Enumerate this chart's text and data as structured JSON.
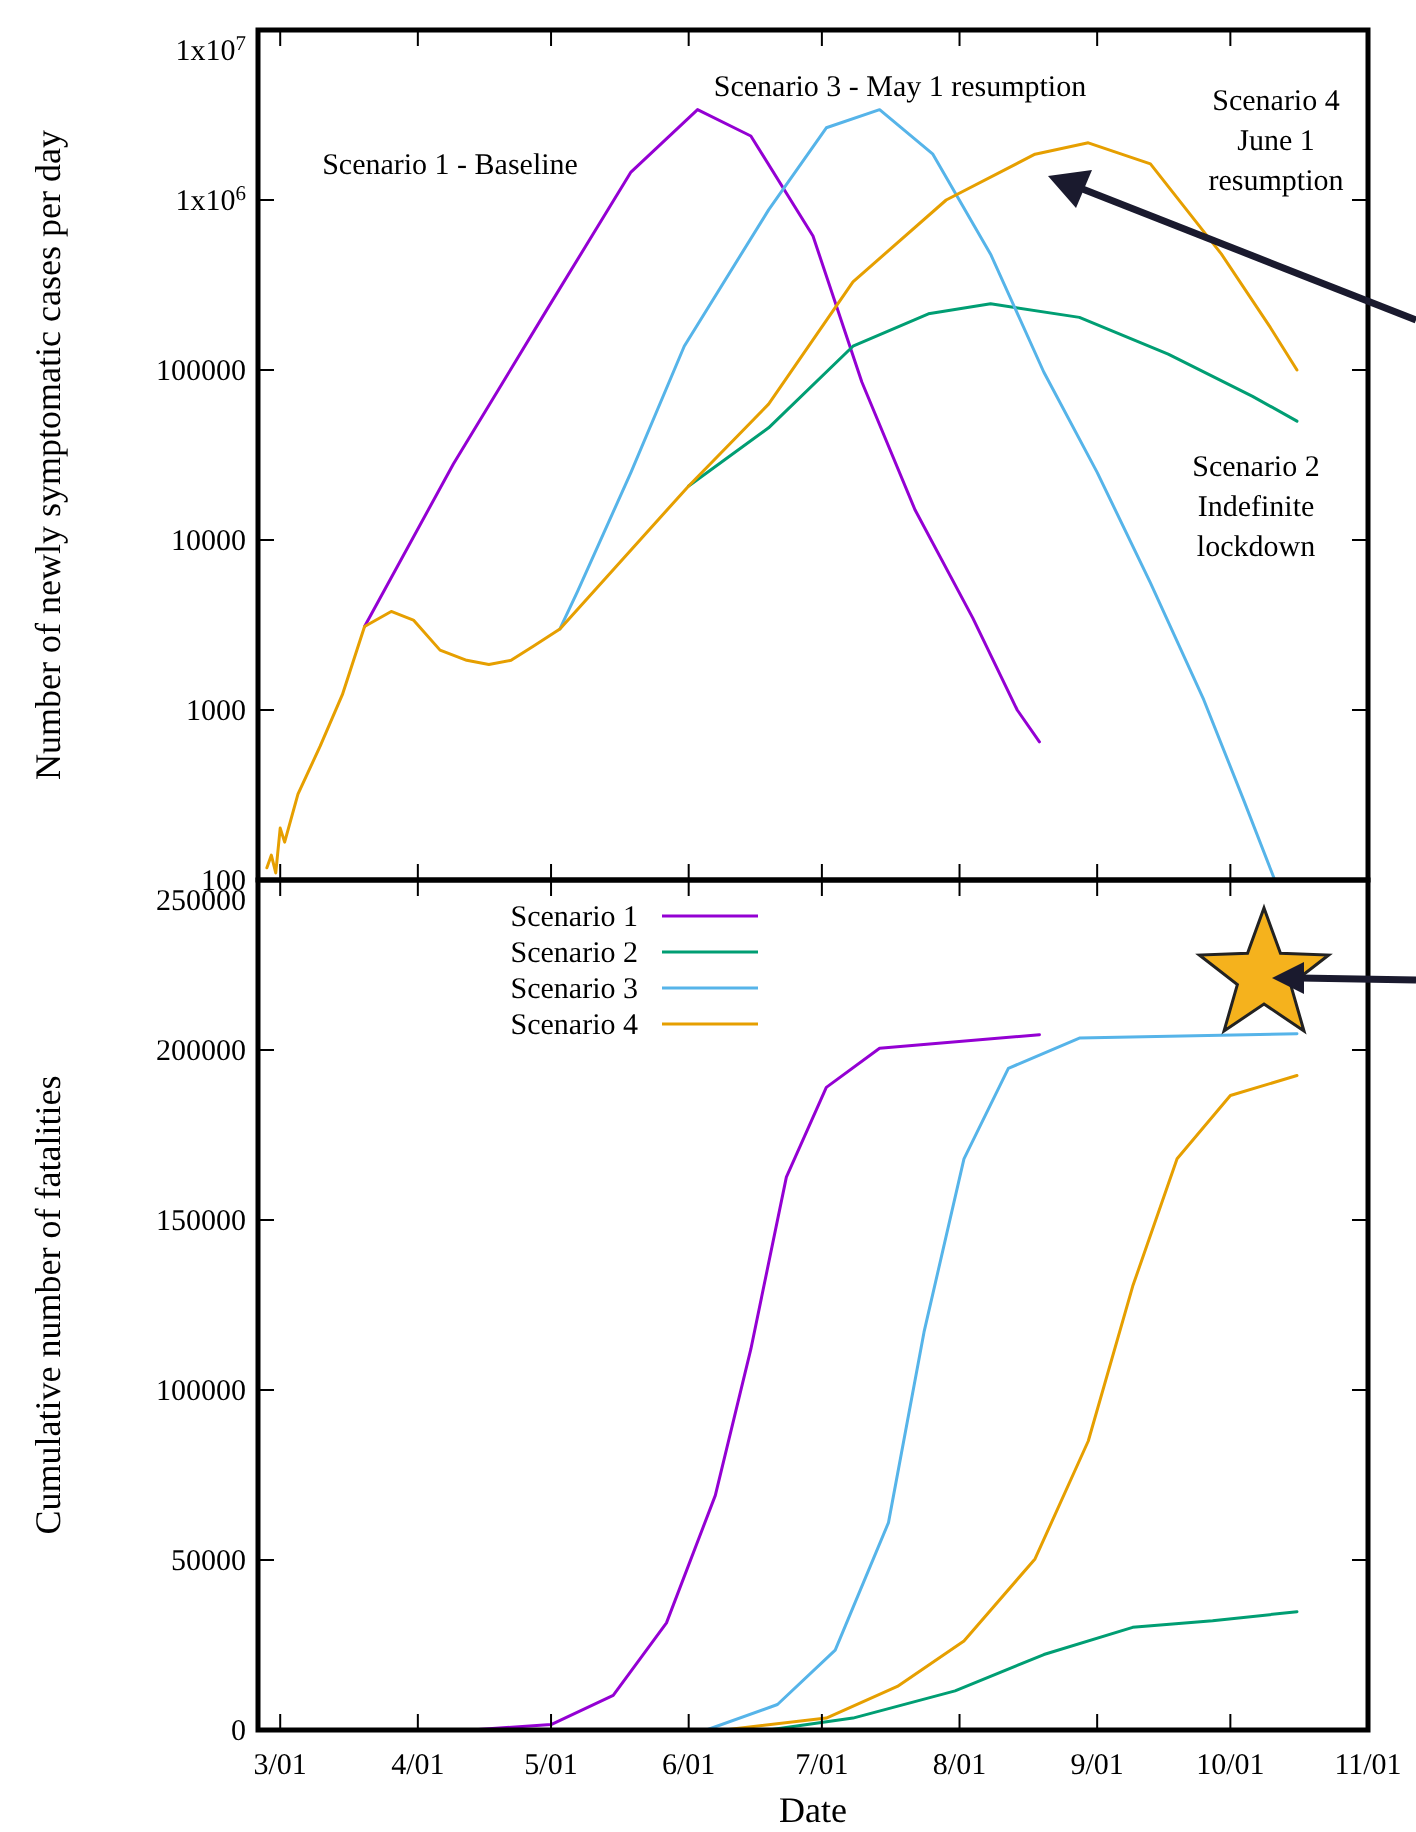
{
  "chart_data": [
    {
      "type": "line",
      "ylabel": "Number of newly symptomatic cases per day",
      "log": "y",
      "tick_labels": "y",
      "xlim": [
        "--02-25",
        "--11-01"
      ],
      "xticks": [
        {
          "value": "--03-01",
          "label": null
        },
        {
          "value": "--04-01",
          "label": null
        },
        {
          "value": "--05-01",
          "label": null
        },
        {
          "value": "--06-01",
          "label": null
        },
        {
          "value": "--07-01",
          "label": null
        },
        {
          "value": "--08-01",
          "label": null
        },
        {
          "value": "--09-01",
          "label": null
        },
        {
          "value": "--10-01",
          "label": null
        },
        {
          "value": "--11-01",
          "label": null
        }
      ],
      "ylim": [
        100,
        10000000
      ],
      "yticks": [
        100,
        1000,
        10000,
        100000,
        {
          "value": 1000000,
          "label": "1x10$^{6}$"
        },
        {
          "value": 10000000,
          "label": "1x10$^{7}$"
        }
      ],
      "series": [
        {
          "color": "#9400d3",
          "x": [
            "--03-20",
            "--04-09",
            "--04-30",
            "--05-19",
            "--06-03",
            "--06-15",
            "--06-29",
            "--07-10",
            "--07-22",
            "--08-04",
            "--08-14",
            "--08-19"
          ],
          "values": [
            3100,
            28000,
            225000,
            1460000,
            3400000,
            2380000,
            614000,
            85000,
            15000,
            3470,
            1000,
            650
          ]
        },
        {
          "color": "#009e73",
          "x": [
            "--06-01",
            "--06-19",
            "--07-08",
            "--07-25",
            "--08-08",
            "--08-28",
            "--09-17",
            "--10-06",
            "--10-16"
          ],
          "values": [
            20800,
            45700,
            138000,
            214000,
            245000,
            204000,
            124000,
            70000,
            50000
          ]
        },
        {
          "color": "#56b4e9",
          "x": [
            "--05-03",
            "--05-07",
            "--05-19",
            "--05-31",
            "--06-19",
            "--07-02",
            "--07-14",
            "--07-26",
            "--08-08",
            "--08-20",
            "--09-01",
            "--09-13",
            "--09-25",
            "--10-04",
            "--10-11"
          ],
          "values": [
            3000,
            5000,
            25000,
            138000,
            875000,
            2660000,
            3400000,
            1860000,
            480000,
            97000,
            25000,
            5600,
            1150,
            295,
            100
          ]
        },
        {
          "color": "#e69f00",
          "x": [
            "--02-27",
            "--02-28",
            "--02-29",
            "--03-01",
            "--03-02",
            "--03-05",
            "--03-10",
            "--03-15",
            "--03-20",
            "--03-26",
            "--03-31",
            "--04-06",
            "--04-12",
            "--04-17",
            "--04-22",
            "--04-27",
            "--05-03",
            "--06-01",
            "--06-19",
            "--07-08",
            "--07-29",
            "--08-18",
            "--08-30",
            "--09-13",
            "--09-29",
            "--10-10",
            "--10-16"
          ],
          "values": [
            118,
            140,
            110,
            202,
            167,
            320,
            613,
            1230,
            3100,
            3800,
            3380,
            2250,
            1960,
            1850,
            1960,
            2370,
            3000,
            20800,
            63000,
            330000,
            1000000,
            1860000,
            2170000,
            1630000,
            480000,
            178000,
            100000
          ]
        }
      ],
      "annotations": [
        "Scenario 1 - Baseline",
        "Scenario 3 - May 1 resumption",
        "Scenario 4\nJune 1\nresumption",
        "Scenario 2\nIndefinite\nlockdown"
      ]
    },
    {
      "type": "line",
      "xlabel": "Date",
      "ylabel": "Cumulative number of fatalities",
      "legend": "top left",
      "xlim": [
        "--02-25",
        "--11-01"
      ],
      "xticks": [
        {
          "value": "--03-01",
          "label": "3/01"
        },
        {
          "value": "--04-01",
          "label": "4/01"
        },
        {
          "value": "--05-01",
          "label": "5/01"
        },
        {
          "value": "--06-01",
          "label": "6/01"
        },
        {
          "value": "--07-01",
          "label": "7/01"
        },
        {
          "value": "--08-01",
          "label": "8/01"
        },
        {
          "value": "--09-01",
          "label": "9/01"
        },
        {
          "value": "--10-01",
          "label": "10/01"
        },
        {
          "value": "--11-01",
          "label": "11/01"
        }
      ],
      "ylim": [
        0,
        250000
      ],
      "yticks": [
        0,
        50000,
        100000,
        150000,
        200000,
        250000
      ],
      "series": [
        {
          "name": "Scenario 1",
          "color": "#9400d3",
          "x": [
            "--04-13",
            "--05-01",
            "--05-15",
            "--05-27",
            "--06-07",
            "--06-15",
            "--06-23",
            "--07-02",
            "--07-14",
            "--08-19"
          ],
          "values": [
            0,
            1600,
            10200,
            31500,
            69000,
            112000,
            162600,
            189000,
            200500,
            204500
          ]
        },
        {
          "name": "Scenario 2",
          "color": "#009e73",
          "x": [
            "--06-19",
            "--07-08",
            "--07-31",
            "--08-20",
            "--09-09",
            "--09-27",
            "--10-16"
          ],
          "values": [
            0,
            3500,
            11500,
            22200,
            30200,
            32100,
            34800
          ]
        },
        {
          "name": "Scenario 3",
          "color": "#56b4e9",
          "x": [
            "--06-05",
            "--06-21",
            "--07-04",
            "--07-16",
            "--07-24",
            "--08-02",
            "--08-12",
            "--08-28",
            "--10-16"
          ],
          "values": [
            0,
            7500,
            23500,
            61000,
            117000,
            168000,
            194600,
            203500,
            204800
          ]
        },
        {
          "name": "Scenario 4",
          "color": "#e69f00",
          "x": [
            "--06-09",
            "--07-02",
            "--07-18",
            "--08-02",
            "--08-18",
            "--08-30",
            "--09-09",
            "--09-19",
            "--10-01",
            "--10-16"
          ],
          "values": [
            0,
            3500,
            12800,
            26200,
            50300,
            85000,
            130500,
            168000,
            186600,
            192500
          ]
        }
      ]
    }
  ]
}
